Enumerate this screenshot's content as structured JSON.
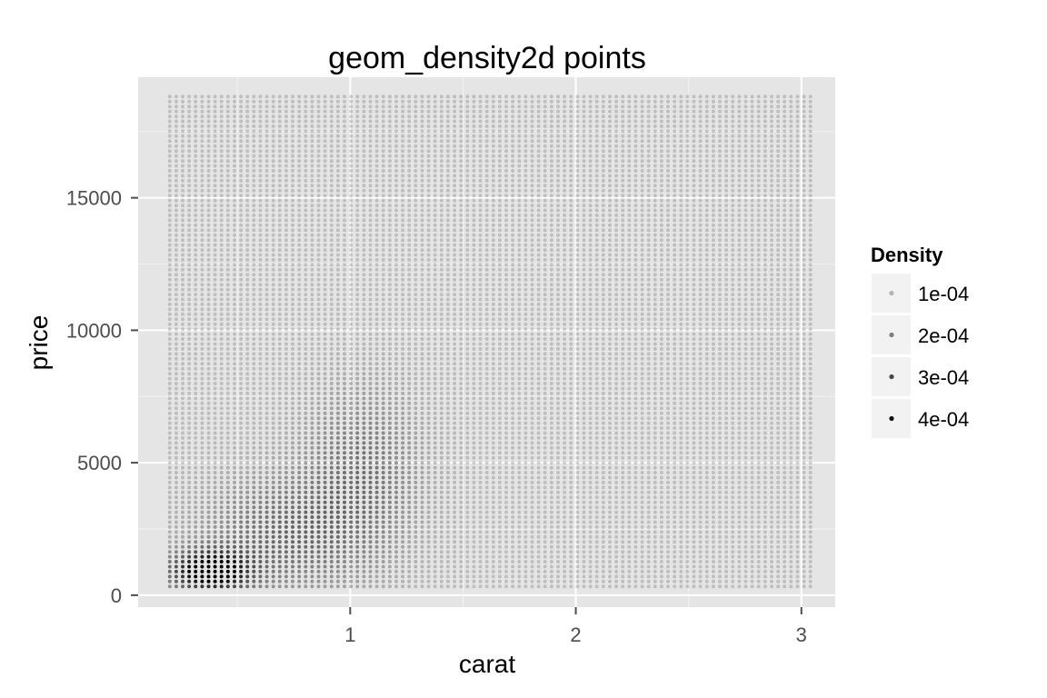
{
  "chart_data": {
    "type": "scatter",
    "title": "geom_density2d points",
    "xlabel": "carat",
    "ylabel": "price",
    "xlim": [
      0.06,
      3.15
    ],
    "ylim": [
      -450,
      19550
    ],
    "x_ticks": [
      1,
      2,
      3
    ],
    "x_minor_ticks": [
      0.5,
      1.5,
      2.5
    ],
    "y_ticks": [
      0,
      5000,
      10000,
      15000
    ],
    "y_minor_ticks": [
      2500,
      7500,
      12500,
      17500
    ],
    "grid": true,
    "grid_x": {
      "from": 0.2,
      "to": 3.04,
      "count": 100
    },
    "grid_y": {
      "from": 330,
      "to": 18820,
      "count": 100
    },
    "density_peaks": [
      {
        "x": 0.38,
        "y": 900,
        "sx": 0.12,
        "sy": 550,
        "peak": 0.00044
      },
      {
        "x": 0.7,
        "y": 2300,
        "sx": 0.25,
        "sy": 1500,
        "peak": 0.00016
      },
      {
        "x": 1.05,
        "y": 4700,
        "sx": 0.18,
        "sy": 2200,
        "peak": 0.00014
      }
    ],
    "density_baseline": 6e-05,
    "legend": {
      "title": "Density",
      "position": "right",
      "entries": [
        {
          "label": "1e-04",
          "value": 0.0001
        },
        {
          "label": "2e-04",
          "value": 0.0002
        },
        {
          "label": "3e-04",
          "value": 0.0003
        },
        {
          "label": "4e-04",
          "value": 0.0004
        }
      ]
    },
    "colors": {
      "panel_background": "#e5e5e5",
      "grid_major": "#ffffff",
      "grid_minor": "#f2f2f2",
      "point_color": "#000000",
      "legend_key_background": "#f2f2f2"
    }
  }
}
